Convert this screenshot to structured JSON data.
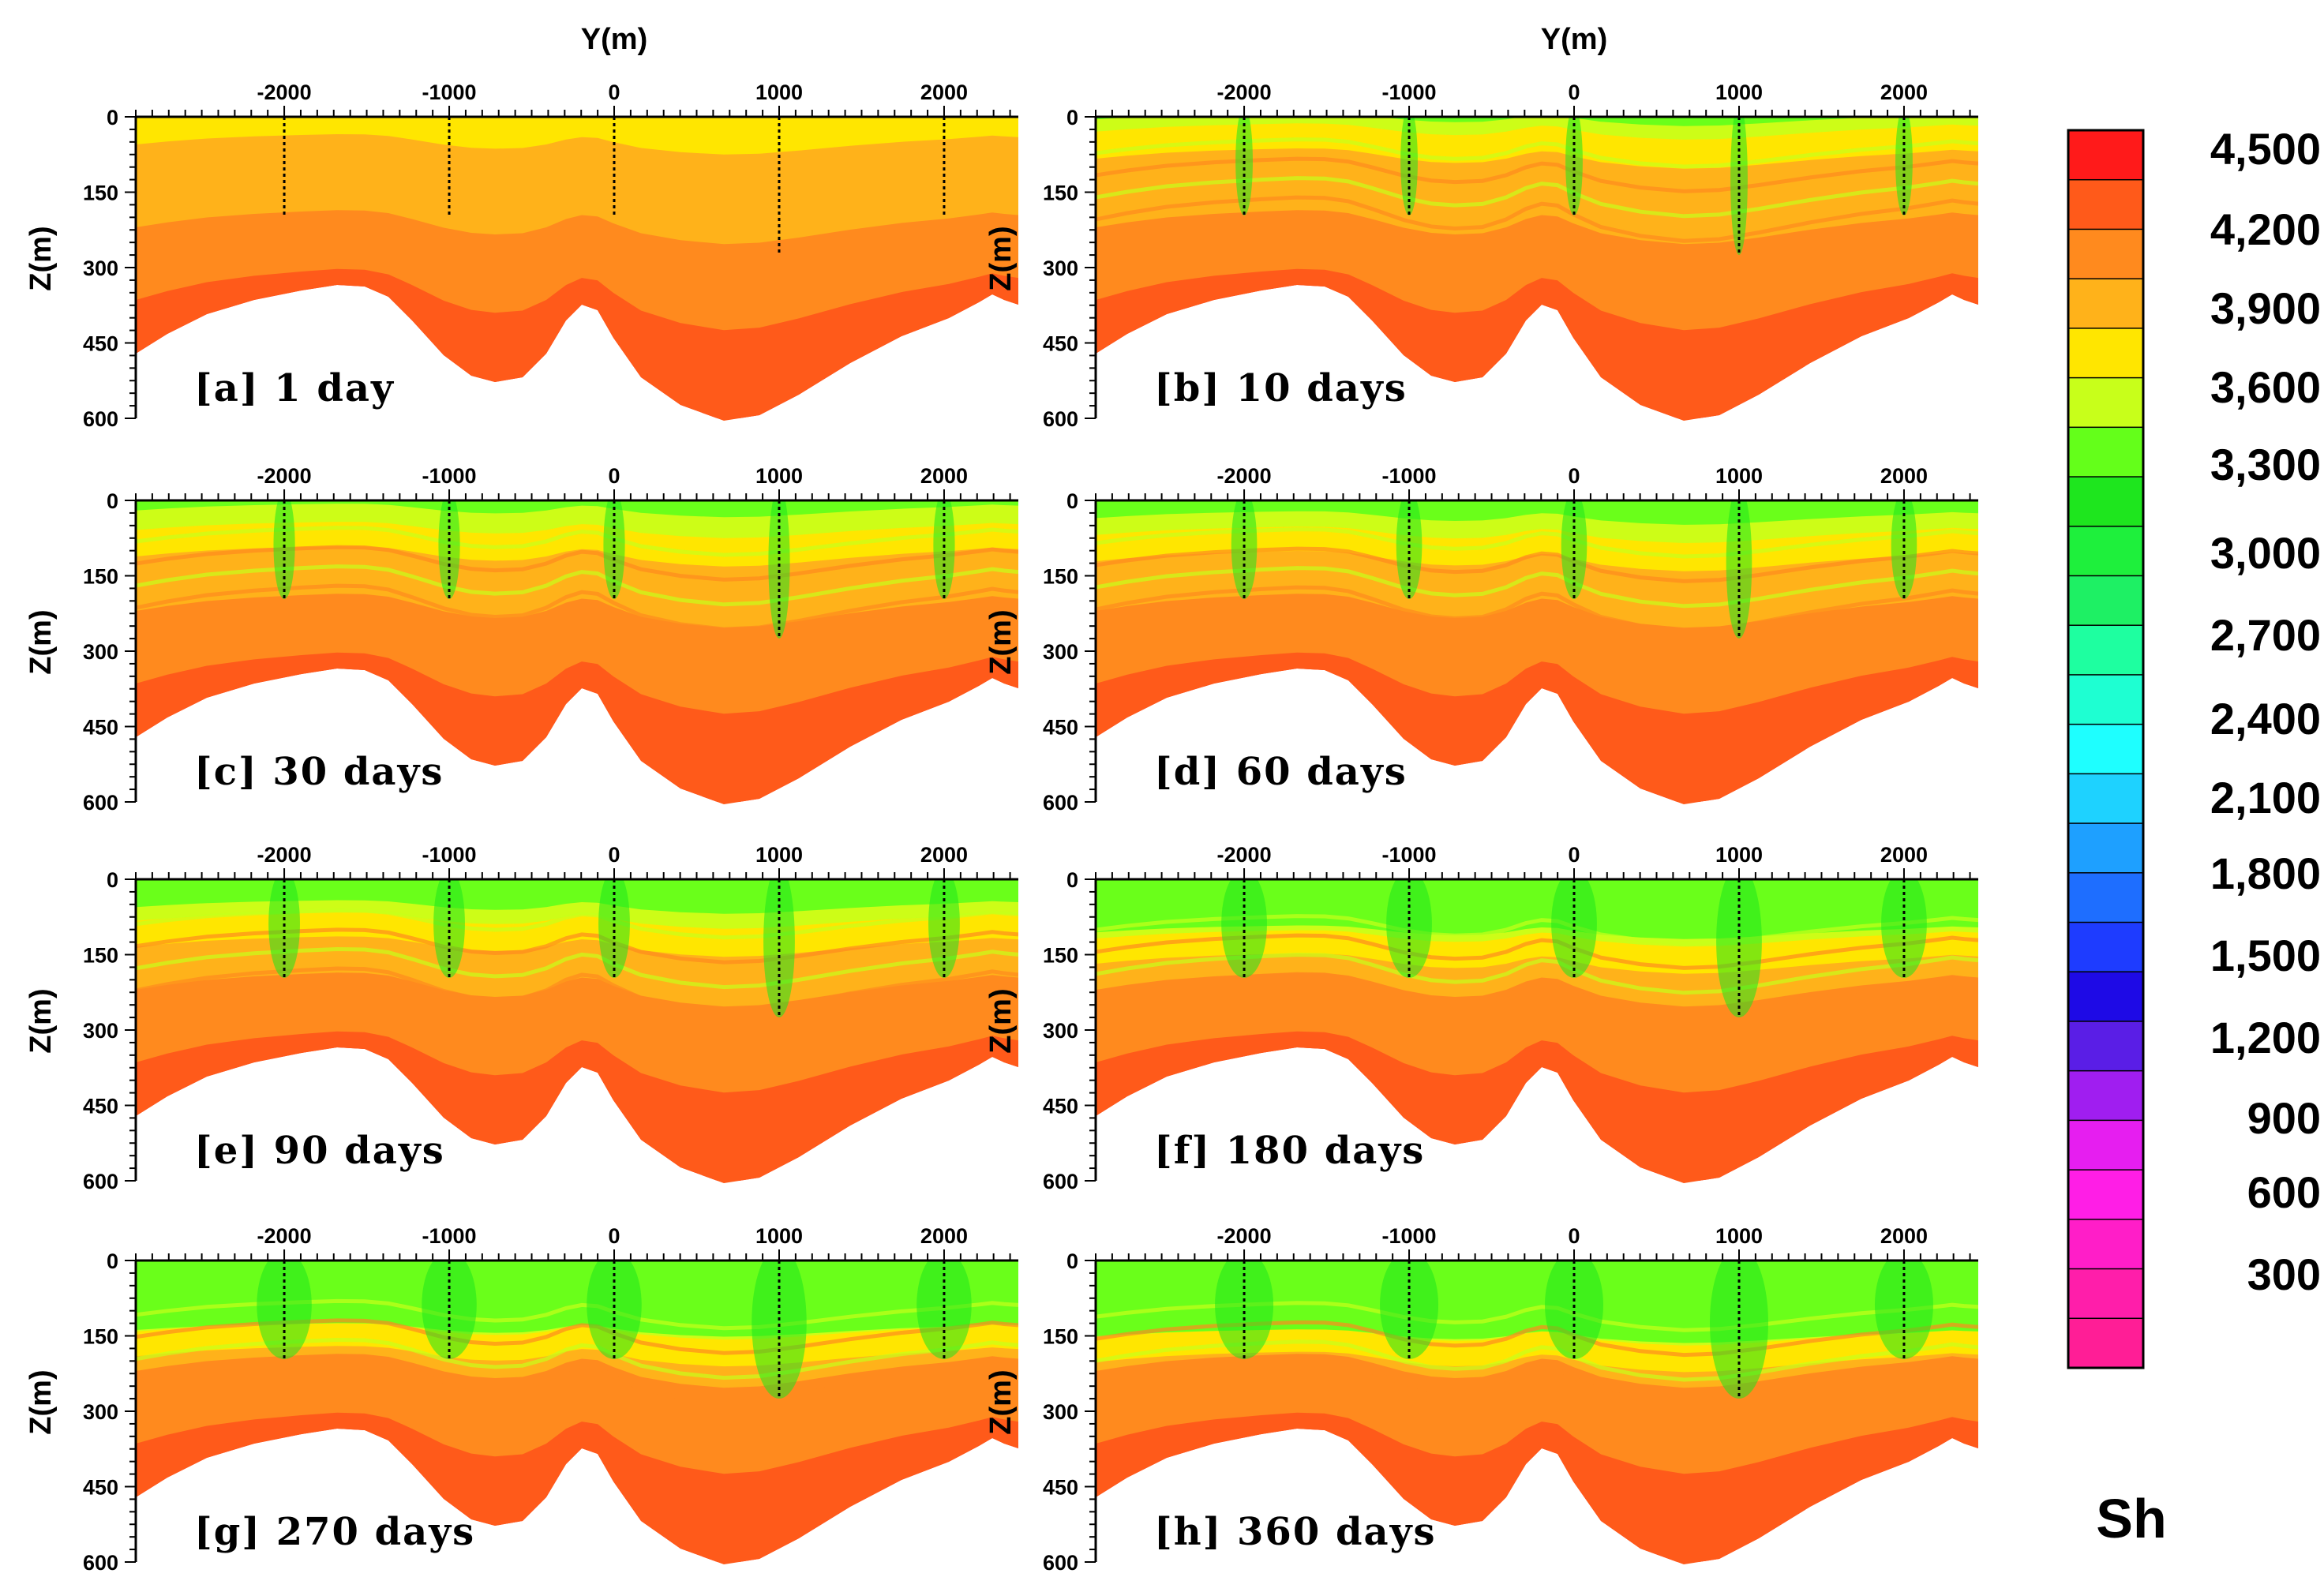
{
  "chart_data": {
    "type": "contour",
    "x_axis_label": "Y(m)",
    "y_axis_label": "Z(m)",
    "x_ticks": [
      -2000,
      -1000,
      0,
      1000,
      2000
    ],
    "x_tick_labels": [
      "-2000",
      "-1000",
      "0",
      "1000",
      "2000"
    ],
    "y_ticks": [
      0,
      150,
      300,
      450,
      600
    ],
    "y_tick_labels": [
      "0",
      "150",
      "300",
      "450",
      "600"
    ],
    "xlim": [
      -2900,
      2450
    ],
    "ylim": [
      0,
      600
    ],
    "well_positions_m": [
      -2000,
      -1000,
      0,
      1000,
      2000
    ],
    "panels": [
      {
        "label": "[a] 1 day",
        "day": 1,
        "green_fraction": 0.0,
        "lime_fraction": 0.0
      },
      {
        "label": "[b] 10 days",
        "day": 10,
        "green_fraction": 0.02,
        "lime_fraction": 0.15
      },
      {
        "label": "[c] 30 days",
        "day": 30,
        "green_fraction": 0.08,
        "lime_fraction": 0.3
      },
      {
        "label": "[d] 60 days",
        "day": 60,
        "green_fraction": 0.14,
        "lime_fraction": 0.35
      },
      {
        "label": "[e] 90 days",
        "day": 90,
        "green_fraction": 0.22,
        "lime_fraction": 0.42
      },
      {
        "label": "[f] 180 days",
        "day": 180,
        "green_fraction": 0.42,
        "lime_fraction": 0.6
      },
      {
        "label": "[g] 270 days",
        "day": 270,
        "green_fraction": 0.55,
        "lime_fraction": 0.72
      },
      {
        "label": "[h] 360 days",
        "day": 360,
        "green_fraction": 0.6,
        "lime_fraction": 0.78
      }
    ],
    "colorbar": {
      "title": "Sh",
      "levels": [
        "4,500",
        "4,200",
        "3,900",
        "3,600",
        "3,300",
        "3,000",
        "2,700",
        "2,400",
        "2,100",
        "1,800",
        "1,500",
        "1,200",
        "900",
        "600",
        "300"
      ],
      "colors": [
        "#ff1a1a",
        "#ff5a1a",
        "#ff8a1e",
        "#ffb21a",
        "#ffe600",
        "#c8ff1a",
        "#64ff1a",
        "#1ee61e",
        "#1ef03c",
        "#1ef064",
        "#1effa0",
        "#1effd2",
        "#1effff",
        "#1ed2ff",
        "#1ea0ff",
        "#1e6eff",
        "#1e3cff",
        "#1e0ae6",
        "#5a1ee6",
        "#a01ef0",
        "#e61ef0",
        "#ff1ee6",
        "#ff1ec8",
        "#ff1eaa",
        "#ff1e96"
      ]
    }
  }
}
